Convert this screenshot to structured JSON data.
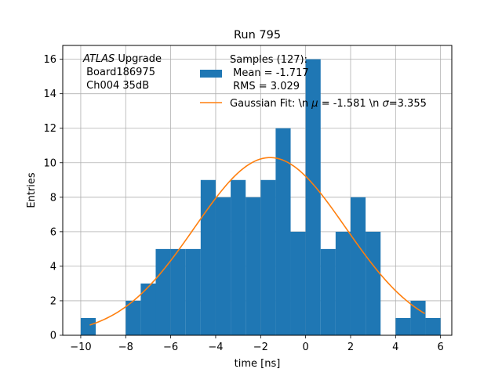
{
  "chart_data": {
    "type": "bar",
    "title": "Run 795",
    "xlabel": "time [ns]",
    "ylabel": "Entries",
    "xlim": [
      -10.8,
      6.5
    ],
    "ylim": [
      0,
      16.8
    ],
    "grid": true,
    "x_ticks": [
      -10,
      -8,
      -6,
      -4,
      -2,
      0,
      2,
      4,
      6
    ],
    "y_ticks": [
      0,
      2,
      4,
      6,
      8,
      10,
      12,
      14,
      16
    ],
    "x_tick_labels": [
      "−10",
      "−8",
      "−6",
      "−4",
      "−2",
      "0",
      "2",
      "4",
      "6"
    ],
    "y_tick_labels": [
      "0",
      "2",
      "4",
      "6",
      "8",
      "10",
      "12",
      "14",
      "16"
    ],
    "bin_width": 0.667,
    "bins": [
      {
        "x": -10.0,
        "count": 1
      },
      {
        "x": -8.0,
        "count": 2
      },
      {
        "x": -7.333,
        "count": 3
      },
      {
        "x": -6.667,
        "count": 5
      },
      {
        "x": -6.0,
        "count": 5
      },
      {
        "x": -5.333,
        "count": 5
      },
      {
        "x": -4.667,
        "count": 9
      },
      {
        "x": -4.0,
        "count": 8
      },
      {
        "x": -3.333,
        "count": 9
      },
      {
        "x": -2.667,
        "count": 8
      },
      {
        "x": -2.0,
        "count": 9
      },
      {
        "x": -1.333,
        "count": 12
      },
      {
        "x": -0.667,
        "count": 6
      },
      {
        "x": 0.0,
        "count": 16
      },
      {
        "x": 0.667,
        "count": 5
      },
      {
        "x": 1.333,
        "count": 6
      },
      {
        "x": 2.0,
        "count": 8
      },
      {
        "x": 2.667,
        "count": 6
      },
      {
        "x": 4.0,
        "count": 1
      },
      {
        "x": 4.667,
        "count": 2
      },
      {
        "x": 5.333,
        "count": 1
      }
    ],
    "fit": {
      "amplitude": 10.3,
      "mu": -1.581,
      "sigma": 3.355,
      "x_range": [
        -9.6,
        5.3
      ]
    },
    "legend": {
      "placement": "upper-right",
      "samples_lines": [
        "Samples (127):",
        " Mean = -1.717",
        " RMS = 3.029"
      ],
      "fit_label_before": "Gaussian Fit: \\n ",
      "fit_mu_symbol": "μ",
      "fit_mid": " = -1.581 \\n ",
      "fit_sigma_symbol": "σ",
      "fit_end": "=3.355"
    },
    "annotation": {
      "atlas": "ATLAS",
      "upgrade": " Upgrade",
      "board": " Board186975",
      "channel": " Ch004 35dB"
    },
    "colors": {
      "bars": "#1f77b4",
      "fit": "#ff7f0e",
      "grid": "#b0b0b0",
      "axes": "#000000"
    }
  }
}
